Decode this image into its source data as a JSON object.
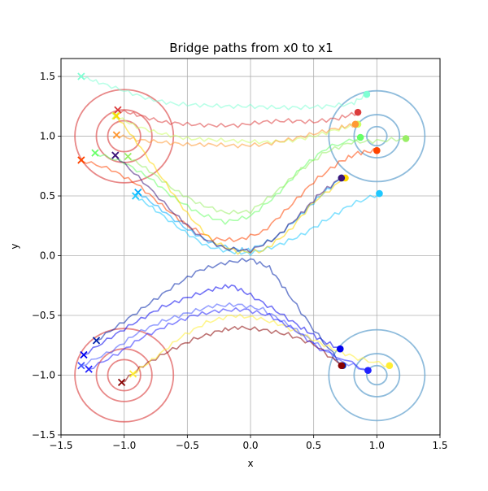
{
  "chart_data": {
    "type": "line",
    "title": "Bridge paths from x0 to x1",
    "xlabel": "x",
    "ylabel": "y",
    "xlim": [
      -1.5,
      1.5
    ],
    "ylim": [
      -1.5,
      1.65
    ],
    "xticks": [
      -1.5,
      -1.0,
      -0.5,
      0.0,
      0.5,
      1.0,
      1.5
    ],
    "xtick_labels": [
      "−1.5",
      "−1.0",
      "−0.5",
      "0.0",
      "0.5",
      "1.0",
      "1.5"
    ],
    "yticks": [
      -1.5,
      -1.0,
      -0.5,
      0.0,
      0.5,
      1.0,
      1.5
    ],
    "ytick_labels": [
      "−1.5",
      "−1.0",
      "−0.5",
      "0.0",
      "0.5",
      "1.0",
      "1.5"
    ],
    "grid": true,
    "contours": [
      {
        "center": [
          -1.0,
          1.0
        ],
        "radii": [
          0.13,
          0.22,
          0.39
        ],
        "color": "#e06060"
      },
      {
        "center": [
          -1.0,
          -1.0
        ],
        "radii": [
          0.13,
          0.22,
          0.39
        ],
        "color": "#e06060"
      },
      {
        "center": [
          1.0,
          1.0
        ],
        "radii": [
          0.08,
          0.18,
          0.38
        ],
        "color": "#6aa6d0"
      },
      {
        "center": [
          1.0,
          -1.0
        ],
        "radii": [
          0.08,
          0.18,
          0.38
        ],
        "color": "#6aa6d0"
      }
    ],
    "series": [
      {
        "color": "#7fffd4",
        "start": [
          -1.34,
          1.5
        ],
        "end": [
          0.92,
          1.35
        ],
        "points": [
          [
            -1.34,
            1.5
          ],
          [
            -1.2,
            1.45
          ],
          [
            -1.0,
            1.38
          ],
          [
            -0.8,
            1.31
          ],
          [
            -0.6,
            1.27
          ],
          [
            -0.4,
            1.26
          ],
          [
            -0.2,
            1.25
          ],
          [
            0.0,
            1.25
          ],
          [
            0.2,
            1.24
          ],
          [
            0.4,
            1.24
          ],
          [
            0.6,
            1.25
          ],
          [
            0.8,
            1.27
          ],
          [
            0.92,
            1.35
          ]
        ]
      },
      {
        "color": "#dc3c3c",
        "start": [
          -1.05,
          1.22
        ],
        "end": [
          0.85,
          1.2
        ],
        "points": [
          [
            -1.05,
            1.22
          ],
          [
            -0.9,
            1.18
          ],
          [
            -0.7,
            1.12
          ],
          [
            -0.5,
            1.1
          ],
          [
            -0.3,
            1.09
          ],
          [
            -0.1,
            1.09
          ],
          [
            0.1,
            1.12
          ],
          [
            0.3,
            1.13
          ],
          [
            0.5,
            1.12
          ],
          [
            0.7,
            1.15
          ],
          [
            0.85,
            1.2
          ]
        ]
      },
      {
        "color": "#ccff66",
        "start": [
          -1.07,
          1.17
        ],
        "end": [
          0.85,
          1.1
        ],
        "points": [
          [
            -1.07,
            1.17
          ],
          [
            -0.9,
            1.08
          ],
          [
            -0.7,
            1.02
          ],
          [
            -0.5,
            0.98
          ],
          [
            -0.3,
            0.97
          ],
          [
            -0.1,
            0.96
          ],
          [
            0.1,
            0.95
          ],
          [
            0.3,
            0.96
          ],
          [
            0.5,
            1.0
          ],
          [
            0.7,
            1.06
          ],
          [
            0.85,
            1.1
          ]
        ]
      },
      {
        "color": "#ff9933",
        "start": [
          -1.06,
          1.01
        ],
        "end": [
          0.83,
          1.1
        ],
        "points": [
          [
            -1.06,
            1.01
          ],
          [
            -0.9,
            0.97
          ],
          [
            -0.7,
            0.95
          ],
          [
            -0.5,
            0.93
          ],
          [
            -0.3,
            0.93
          ],
          [
            -0.1,
            0.92
          ],
          [
            0.1,
            0.93
          ],
          [
            0.3,
            0.97
          ],
          [
            0.5,
            1.02
          ],
          [
            0.7,
            1.07
          ],
          [
            0.83,
            1.1
          ]
        ]
      },
      {
        "color": "#66ff66",
        "start": [
          -1.23,
          0.86
        ],
        "end": [
          0.87,
          0.99
        ],
        "points": [
          [
            -1.23,
            0.86
          ],
          [
            -1.0,
            0.78
          ],
          [
            -0.8,
            0.65
          ],
          [
            -0.6,
            0.48
          ],
          [
            -0.4,
            0.35
          ],
          [
            -0.2,
            0.28
          ],
          [
            0.0,
            0.33
          ],
          [
            0.2,
            0.5
          ],
          [
            0.4,
            0.73
          ],
          [
            0.6,
            0.9
          ],
          [
            0.87,
            0.99
          ]
        ]
      },
      {
        "color": "#99ee66",
        "start": [
          -0.97,
          0.83
        ],
        "end": [
          1.23,
          0.98
        ],
        "points": [
          [
            -0.97,
            0.83
          ],
          [
            -0.8,
            0.71
          ],
          [
            -0.6,
            0.55
          ],
          [
            -0.4,
            0.43
          ],
          [
            -0.2,
            0.36
          ],
          [
            0.0,
            0.37
          ],
          [
            0.2,
            0.53
          ],
          [
            0.4,
            0.72
          ],
          [
            0.6,
            0.87
          ],
          [
            0.8,
            0.95
          ],
          [
            1.0,
            0.96
          ],
          [
            1.23,
            0.98
          ]
        ]
      },
      {
        "color": "#ff4400",
        "start": [
          -1.34,
          0.8
        ],
        "end": [
          1.0,
          0.88
        ],
        "points": [
          [
            -1.34,
            0.8
          ],
          [
            -1.1,
            0.72
          ],
          [
            -0.9,
            0.6
          ],
          [
            -0.7,
            0.42
          ],
          [
            -0.5,
            0.25
          ],
          [
            -0.3,
            0.14
          ],
          [
            -0.1,
            0.13
          ],
          [
            0.1,
            0.2
          ],
          [
            0.3,
            0.4
          ],
          [
            0.5,
            0.62
          ],
          [
            0.7,
            0.78
          ],
          [
            0.85,
            0.86
          ],
          [
            1.0,
            0.88
          ]
        ]
      },
      {
        "color": "#00aaff",
        "start": [
          -0.89,
          0.53
        ],
        "end": [
          0.72,
          0.65
        ],
        "points": [
          [
            -0.89,
            0.53
          ],
          [
            -0.7,
            0.38
          ],
          [
            -0.5,
            0.22
          ],
          [
            -0.3,
            0.1
          ],
          [
            -0.1,
            0.05
          ],
          [
            0.0,
            0.05
          ],
          [
            0.2,
            0.15
          ],
          [
            0.4,
            0.34
          ],
          [
            0.55,
            0.5
          ],
          [
            0.72,
            0.65
          ]
        ]
      },
      {
        "color": "#1ec8ff",
        "start": [
          -0.91,
          0.5
        ],
        "end": [
          1.02,
          0.52
        ],
        "points": [
          [
            -0.91,
            0.5
          ],
          [
            -0.75,
            0.38
          ],
          [
            -0.55,
            0.22
          ],
          [
            -0.35,
            0.08
          ],
          [
            -0.15,
            0.03
          ],
          [
            0.0,
            0.02
          ],
          [
            0.2,
            0.08
          ],
          [
            0.4,
            0.17
          ],
          [
            0.6,
            0.3
          ],
          [
            0.8,
            0.43
          ],
          [
            1.02,
            0.52
          ]
        ]
      },
      {
        "color": "#ffd700",
        "start": [
          -1.06,
          1.17
        ],
        "end": [
          0.75,
          0.65
        ],
        "points": [
          [
            -1.06,
            1.17
          ],
          [
            -0.9,
            0.95
          ],
          [
            -0.7,
            0.65
          ],
          [
            -0.5,
            0.35
          ],
          [
            -0.3,
            0.12
          ],
          [
            -0.1,
            0.03
          ],
          [
            0.1,
            0.04
          ],
          [
            0.3,
            0.2
          ],
          [
            0.5,
            0.45
          ],
          [
            0.75,
            0.65
          ]
        ]
      },
      {
        "color": "#3c1478",
        "start": [
          -1.07,
          0.84
        ],
        "end": [
          0.72,
          0.65
        ],
        "points": [
          [
            -1.07,
            0.84
          ],
          [
            -0.85,
            0.62
          ],
          [
            -0.6,
            0.35
          ],
          [
            -0.4,
            0.16
          ],
          [
            -0.2,
            0.06
          ],
          [
            0.0,
            0.04
          ],
          [
            0.2,
            0.15
          ],
          [
            0.4,
            0.35
          ],
          [
            0.55,
            0.52
          ],
          [
            0.72,
            0.65
          ]
        ]
      },
      {
        "color": "#4455ff",
        "start": [
          -1.34,
          -0.92
        ],
        "end": [
          0.93,
          -0.96
        ],
        "points": [
          [
            -1.34,
            -0.92
          ],
          [
            -1.1,
            -0.8
          ],
          [
            -0.9,
            -0.65
          ],
          [
            -0.7,
            -0.55
          ],
          [
            -0.5,
            -0.48
          ],
          [
            -0.3,
            -0.42
          ],
          [
            -0.1,
            -0.41
          ],
          [
            0.1,
            -0.45
          ],
          [
            0.3,
            -0.58
          ],
          [
            0.5,
            -0.72
          ],
          [
            0.7,
            -0.88
          ],
          [
            0.93,
            -0.96
          ]
        ]
      },
      {
        "color": "#0000ee",
        "start": [
          -1.32,
          -0.83
        ],
        "end": [
          0.71,
          -0.78
        ],
        "points": [
          [
            -1.32,
            -0.83
          ],
          [
            -1.1,
            -0.68
          ],
          [
            -0.9,
            -0.55
          ],
          [
            -0.7,
            -0.43
          ],
          [
            -0.5,
            -0.35
          ],
          [
            -0.3,
            -0.28
          ],
          [
            -0.15,
            -0.25
          ],
          [
            0.0,
            -0.33
          ],
          [
            0.2,
            -0.46
          ],
          [
            0.4,
            -0.6
          ],
          [
            0.55,
            -0.7
          ],
          [
            0.71,
            -0.78
          ]
        ]
      },
      {
        "color": "#0022aa",
        "start": [
          -1.22,
          -0.71
        ],
        "end": [
          0.73,
          -0.92
        ],
        "points": [
          [
            -1.22,
            -0.71
          ],
          [
            -1.0,
            -0.55
          ],
          [
            -0.8,
            -0.4
          ],
          [
            -0.6,
            -0.25
          ],
          [
            -0.4,
            -0.12
          ],
          [
            -0.2,
            -0.06
          ],
          [
            0.0,
            -0.03
          ],
          [
            0.15,
            -0.1
          ],
          [
            0.3,
            -0.32
          ],
          [
            0.5,
            -0.62
          ],
          [
            0.73,
            -0.92
          ]
        ]
      },
      {
        "color": "#880000",
        "start": [
          -1.02,
          -1.06
        ],
        "end": [
          0.72,
          -0.92
        ],
        "points": [
          [
            -1.02,
            -1.06
          ],
          [
            -0.85,
            -0.92
          ],
          [
            -0.65,
            -0.8
          ],
          [
            -0.45,
            -0.7
          ],
          [
            -0.25,
            -0.63
          ],
          [
            -0.1,
            -0.6
          ],
          [
            0.1,
            -0.62
          ],
          [
            0.3,
            -0.66
          ],
          [
            0.5,
            -0.74
          ],
          [
            0.72,
            -0.92
          ]
        ]
      },
      {
        "color": "#ffee33",
        "start": [
          -0.93,
          -0.99
        ],
        "end": [
          1.1,
          -0.92
        ],
        "points": [
          [
            -0.93,
            -0.99
          ],
          [
            -0.75,
            -0.85
          ],
          [
            -0.55,
            -0.68
          ],
          [
            -0.35,
            -0.56
          ],
          [
            -0.15,
            -0.5
          ],
          [
            0.05,
            -0.52
          ],
          [
            0.25,
            -0.58
          ],
          [
            0.45,
            -0.68
          ],
          [
            0.65,
            -0.78
          ],
          [
            0.85,
            -0.86
          ],
          [
            1.1,
            -0.92
          ]
        ]
      },
      {
        "color": "#2222ff",
        "start": [
          -1.28,
          -0.95
        ],
        "end": [
          0.93,
          -0.96
        ],
        "points": [
          [
            -1.28,
            -0.95
          ],
          [
            -1.05,
            -0.82
          ],
          [
            -0.85,
            -0.68
          ],
          [
            -0.65,
            -0.58
          ],
          [
            -0.45,
            -0.5
          ],
          [
            -0.25,
            -0.46
          ],
          [
            -0.05,
            -0.45
          ],
          [
            0.15,
            -0.5
          ],
          [
            0.35,
            -0.62
          ],
          [
            0.55,
            -0.78
          ],
          [
            0.93,
            -0.96
          ]
        ]
      }
    ]
  }
}
